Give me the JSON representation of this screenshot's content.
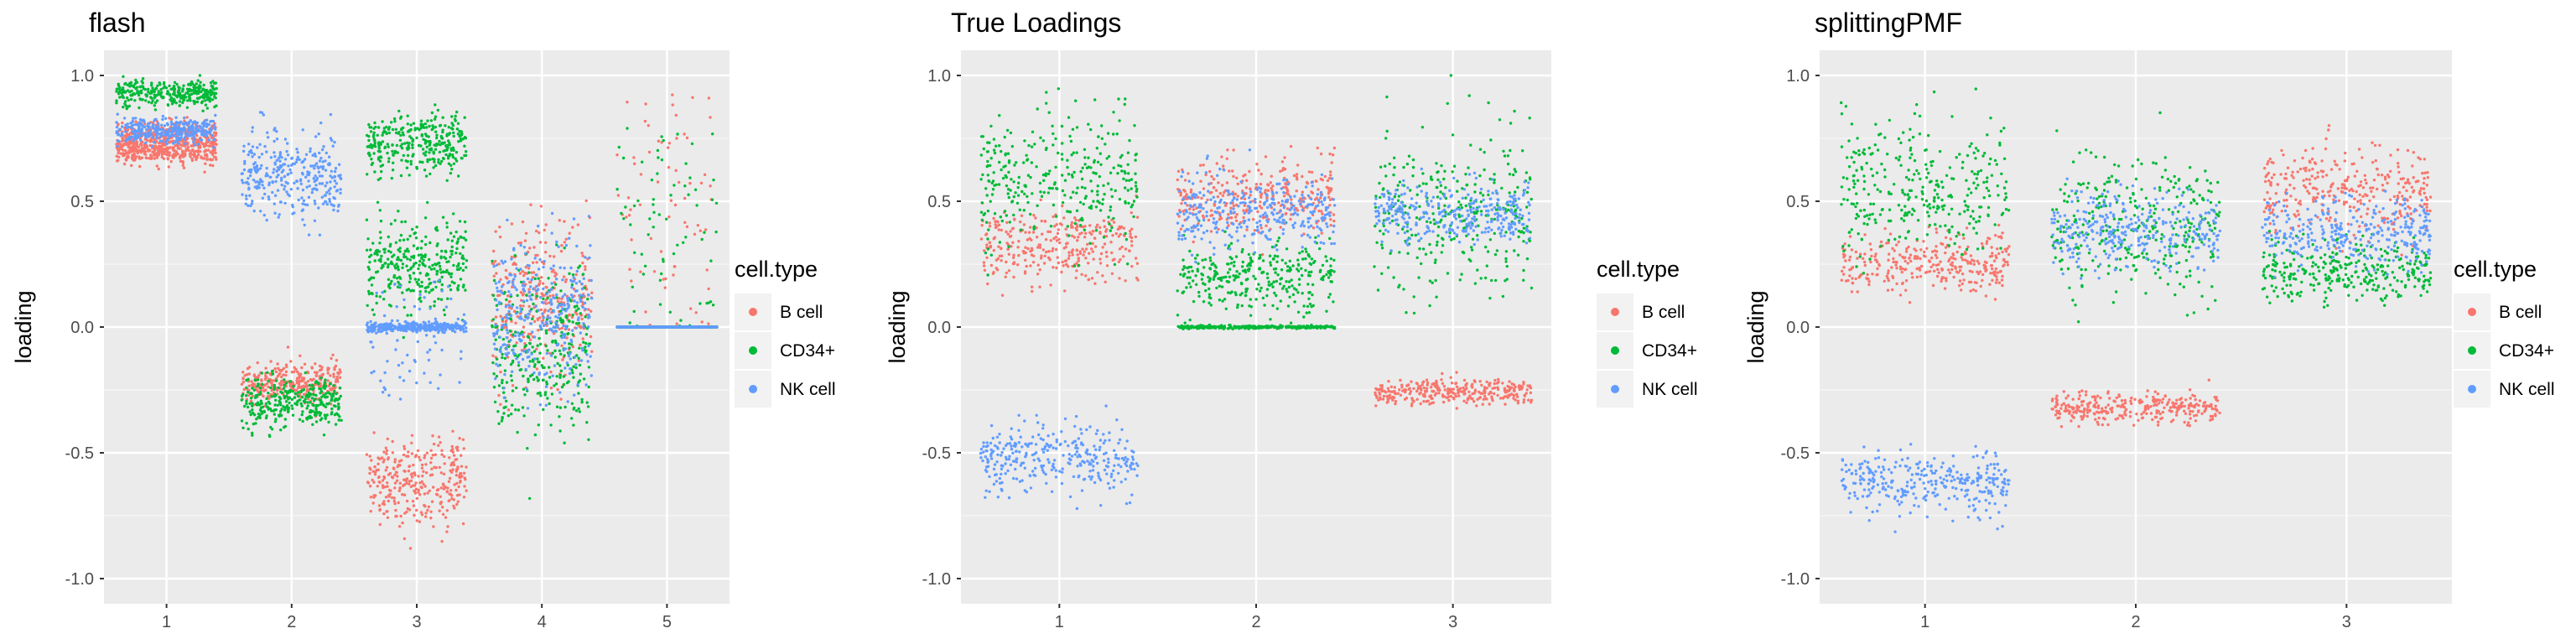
{
  "colors": {
    "panel_bg": "#EBEBEB",
    "grid_major": "#FFFFFF",
    "grid_minor": "#F5F5F5",
    "tick_text": "#4D4D4D",
    "title_text": "#000000",
    "legend_key_bg": "#F2F2F2"
  },
  "legend": {
    "title": "cell.type",
    "placement": "right",
    "items": [
      {
        "label": "B cell",
        "color": "#F8766D"
      },
      {
        "label": "CD34+",
        "color": "#00BA38"
      },
      {
        "label": "NK cell",
        "color": "#619CFF"
      }
    ]
  },
  "chart_data": [
    {
      "type": "scatter",
      "subtype": "jitter",
      "title": "flash",
      "xlabel": "",
      "ylabel": "loading",
      "x_categories": [
        "1",
        "2",
        "3",
        "4",
        "5"
      ],
      "ylim": [
        -1.1,
        1.1
      ],
      "y_ticks": [
        -1.0,
        -0.5,
        0.0,
        0.5,
        1.0
      ],
      "y_tick_labels": [
        "-1.0",
        "-0.5",
        "0.0",
        "0.5",
        "1.0"
      ],
      "grid": true,
      "series": [
        {
          "name": "B cell",
          "groups": [
            {
              "x": "1",
              "center": 0.7,
              "spread": 0.04
            },
            {
              "x": "1",
              "center": 0.76,
              "spread": 0.05
            },
            {
              "x": "2",
              "center": -0.22,
              "spread": 0.06
            },
            {
              "x": "3",
              "center": -0.62,
              "spread": 0.14
            },
            {
              "x": "4",
              "center": 0.1,
              "spread": 0.25
            },
            {
              "x": "5",
              "center": 0.0,
              "spread": 0.0
            },
            {
              "x": "5",
              "center": 0.45,
              "spread": 0.3,
              "sparse": true
            }
          ]
        },
        {
          "name": "CD34+",
          "groups": [
            {
              "x": "1",
              "center": 0.93,
              "spread": 0.04
            },
            {
              "x": "2",
              "center": -0.3,
              "spread": 0.08
            },
            {
              "x": "3",
              "center": 0.73,
              "spread": 0.1
            },
            {
              "x": "3",
              "center": 0.25,
              "spread": 0.15
            },
            {
              "x": "4",
              "center": -0.1,
              "spread": 0.25
            },
            {
              "x": "5",
              "center": 0.0,
              "spread": 0.0
            },
            {
              "x": "5",
              "center": 0.4,
              "spread": 0.25,
              "sparse": true
            }
          ]
        },
        {
          "name": "NK cell",
          "groups": [
            {
              "x": "1",
              "center": 0.78,
              "spread": 0.04
            },
            {
              "x": "2",
              "center": 0.6,
              "spread": 0.14
            },
            {
              "x": "3",
              "center": 0.0,
              "spread": 0.015
            },
            {
              "x": "3",
              "center": -0.05,
              "spread": 0.15,
              "sparse": true
            },
            {
              "x": "4",
              "center": 0.05,
              "spread": 0.25
            },
            {
              "x": "5",
              "center": 0.0,
              "spread": 0.0
            }
          ]
        }
      ]
    },
    {
      "type": "scatter",
      "subtype": "jitter",
      "title": "True Loadings",
      "xlabel": "",
      "ylabel": "loading",
      "x_categories": [
        "1",
        "2",
        "3"
      ],
      "ylim": [
        -1.1,
        1.1
      ],
      "y_ticks": [
        -1.0,
        -0.5,
        0.0,
        0.5,
        1.0
      ],
      "y_tick_labels": [
        "-1.0",
        "-0.5",
        "0.0",
        "0.5",
        "1.0"
      ],
      "grid": true,
      "series": [
        {
          "name": "B cell",
          "groups": [
            {
              "x": "1",
              "center": 0.32,
              "spread": 0.12
            },
            {
              "x": "2",
              "center": 0.52,
              "spread": 0.12
            },
            {
              "x": "3",
              "center": -0.26,
              "spread": 0.04
            }
          ]
        },
        {
          "name": "CD34+",
          "groups": [
            {
              "x": "1",
              "center": 0.6,
              "spread": 0.22
            },
            {
              "x": "2",
              "center": 0.0,
              "spread": 0.005
            },
            {
              "x": "2",
              "center": 0.2,
              "spread": 0.12
            },
            {
              "x": "3",
              "center": 0.45,
              "spread": 0.25
            }
          ]
        },
        {
          "name": "NK cell",
          "groups": [
            {
              "x": "1",
              "center": -0.52,
              "spread": 0.12
            },
            {
              "x": "2",
              "center": 0.45,
              "spread": 0.12
            },
            {
              "x": "3",
              "center": 0.45,
              "spread": 0.1
            }
          ]
        }
      ]
    },
    {
      "type": "scatter",
      "subtype": "jitter",
      "title": "splittingPMF",
      "xlabel": "",
      "ylabel": "loading",
      "x_categories": [
        "1",
        "2",
        "3"
      ],
      "ylim": [
        -1.1,
        1.1
      ],
      "y_ticks": [
        -1.0,
        -0.5,
        0.0,
        0.5,
        1.0
      ],
      "y_tick_labels": [
        "-1.0",
        "-0.5",
        "0.0",
        "0.5",
        "1.0"
      ],
      "grid": true,
      "series": [
        {
          "name": "B cell",
          "groups": [
            {
              "x": "1",
              "center": 0.25,
              "spread": 0.1
            },
            {
              "x": "2",
              "center": -0.32,
              "spread": 0.05
            },
            {
              "x": "3",
              "center": 0.55,
              "spread": 0.15
            }
          ]
        },
        {
          "name": "CD34+",
          "groups": [
            {
              "x": "1",
              "center": 0.55,
              "spread": 0.22
            },
            {
              "x": "2",
              "center": 0.4,
              "spread": 0.22
            },
            {
              "x": "3",
              "center": 0.22,
              "spread": 0.1
            }
          ]
        },
        {
          "name": "NK cell",
          "groups": [
            {
              "x": "1",
              "center": -0.62,
              "spread": 0.1
            },
            {
              "x": "2",
              "center": 0.38,
              "spread": 0.12
            },
            {
              "x": "3",
              "center": 0.38,
              "spread": 0.12
            }
          ]
        }
      ]
    }
  ]
}
